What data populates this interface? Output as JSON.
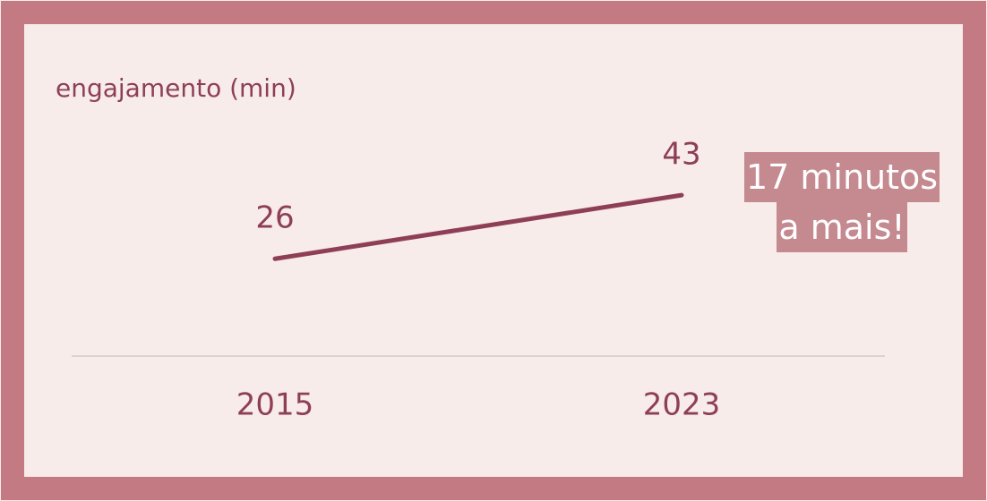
{
  "chart_data": {
    "type": "line",
    "y_label": "engajamento (min)",
    "categories": [
      "2015",
      "2023"
    ],
    "values": [
      26,
      43
    ],
    "color": "#8e3f57",
    "ylim": [
      0,
      60
    ],
    "annotation": [
      "17 minutos",
      "a mais!"
    ]
  }
}
